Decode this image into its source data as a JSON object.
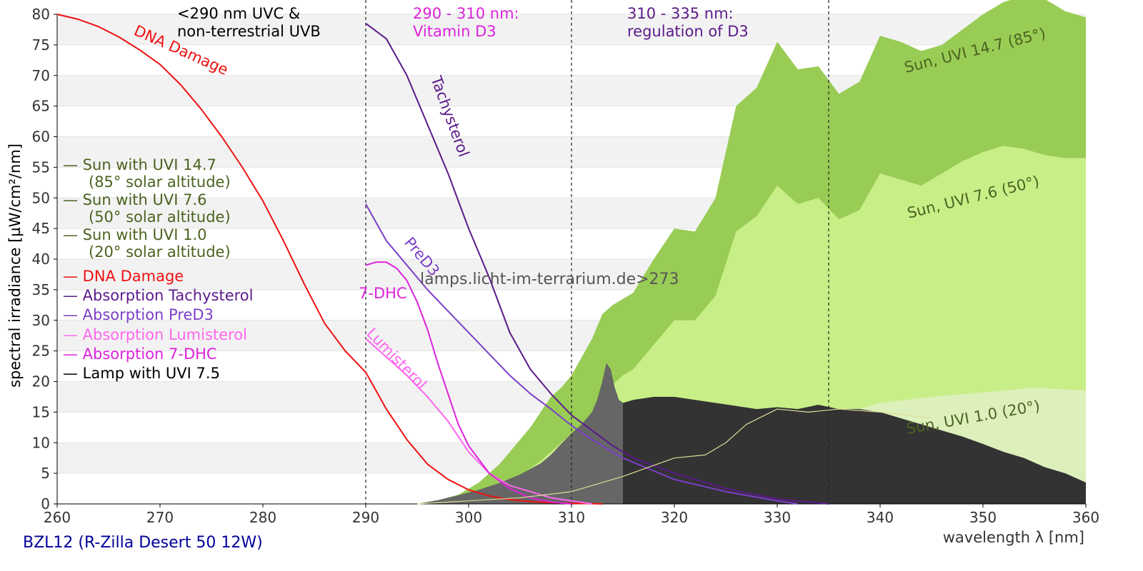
{
  "chart_data": {
    "type": "area",
    "xlabel": "wavelength λ [nm]",
    "ylabel": "spectral irradiance [µW/cm²/nm]",
    "subtitle": "BZL12 (R-Zilla Desert 50 12W)",
    "watermark": "lamps.licht-im-terrarium.de>273",
    "xlim": [
      260,
      360
    ],
    "ylim": [
      0,
      80
    ],
    "xticks": [
      260,
      270,
      280,
      290,
      300,
      310,
      320,
      330,
      340,
      350,
      360
    ],
    "yticks": [
      0,
      5,
      10,
      15,
      20,
      25,
      30,
      35,
      40,
      45,
      50,
      55,
      60,
      65,
      70,
      75,
      80
    ],
    "grid": "alternating horizontal bands",
    "region_dividers": [
      290,
      310,
      335
    ],
    "region_labels": [
      {
        "line1": "<290 nm UVC &",
        "line2": "non-terrestrial UVB",
        "color": "#000000"
      },
      {
        "line1": "290 - 310 nm:",
        "line2": "Vitamin D3",
        "color": "#dd22dd"
      },
      {
        "line1": "310 - 335 nm:",
        "line2": "regulation of D3",
        "color": "#5b1a8b"
      }
    ],
    "legend": {
      "position": "left",
      "items": [
        {
          "line1": "— Sun with UVI 14.7",
          "line2": "(85° solar altitude)",
          "color": "#4b6320"
        },
        {
          "line1": "— Sun with UVI 7.6",
          "line2": "(50° solar altitude)",
          "color": "#4b6320"
        },
        {
          "line1": "— Sun with UVI 1.0",
          "line2": "(20° solar altitude)",
          "color": "#4b6320"
        },
        {
          "line1": "— DNA Damage",
          "color": "#ee1111"
        },
        {
          "line1": "— Absorption Tachysterol",
          "color": "#5b1a8b"
        },
        {
          "line1": "— Absorption PreD3",
          "color": "#7b3fc8"
        },
        {
          "line1": "— Absorption Lumisterol",
          "color": "#ff66ee"
        },
        {
          "line1": "— Absorption 7-DHC",
          "color": "#dd22dd"
        },
        {
          "line1": "— Lamp with UVI 7.5",
          "color": "#000000"
        }
      ]
    },
    "curve_labels": [
      {
        "text": "DNA Damage",
        "color": "#ee1111"
      },
      {
        "text": "Tachysterol",
        "color": "#5b1a8b"
      },
      {
        "text": "PreD3",
        "color": "#7b3fc8"
      },
      {
        "text": "7-DHC",
        "color": "#dd22dd"
      },
      {
        "text": "Lumisterol",
        "color": "#ff66ee"
      }
    ],
    "area_labels": [
      {
        "text": "Sun, UVI 14.7 (85°)",
        "color": "#4b6320"
      },
      {
        "text": "Sun, UVI 7.6 (50°)",
        "color": "#4b6320"
      },
      {
        "text": "Sun, UVI 1.0 (20°)",
        "color": "#4b6320"
      }
    ],
    "areas": [
      {
        "name": "Sun with UVI 14.7",
        "color": "#99cc55",
        "x": [
          295,
          297,
          299,
          300,
          301,
          302,
          303,
          304,
          305,
          306,
          307,
          308,
          309,
          310,
          311,
          312,
          313,
          314,
          315,
          316,
          318,
          320,
          322,
          324,
          326,
          328,
          330,
          332,
          334,
          336,
          338,
          340,
          342,
          344,
          346,
          348,
          350,
          352,
          354,
          356,
          358,
          360
        ],
        "y": [
          0,
          0.6,
          1.5,
          2.5,
          3.5,
          5,
          6.5,
          8.5,
          10.5,
          12.5,
          15,
          17.5,
          19,
          21,
          24,
          27,
          31,
          32.5,
          33.5,
          34.5,
          40,
          45,
          44.5,
          50,
          65,
          68,
          75.5,
          71,
          71.5,
          67,
          69,
          76.5,
          75.5,
          74,
          75,
          77.5,
          80,
          82,
          83,
          82.5,
          80.5,
          79.5
        ]
      },
      {
        "name": "Sun with UVI 7.6",
        "color": "#c8ee88",
        "x": [
          297,
          299,
          300,
          301,
          302,
          303,
          304,
          305,
          306,
          307,
          308,
          309,
          310,
          311,
          312,
          313,
          314,
          315,
          316,
          318,
          320,
          322,
          324,
          326,
          328,
          330,
          332,
          334,
          336,
          338,
          340,
          342,
          344,
          346,
          348,
          350,
          352,
          354,
          356,
          358,
          360
        ],
        "y": [
          0,
          0.4,
          0.8,
          1.3,
          2,
          2.8,
          3.7,
          4.7,
          5.8,
          7,
          8.5,
          10,
          11.5,
          13,
          15,
          17,
          19.5,
          21,
          22,
          26,
          30,
          30,
          34,
          44.5,
          47,
          52,
          49,
          50,
          46.5,
          48,
          54,
          53,
          52,
          54,
          56,
          57.5,
          58.5,
          58,
          57,
          56.5,
          56.5
        ]
      },
      {
        "name": "Sun with UVI 1.0",
        "color": "#ddefbb",
        "x": [
          300,
          305,
          310,
          315,
          320,
          325,
          330,
          335,
          340,
          345,
          350,
          355,
          360
        ],
        "y": [
          0,
          0.5,
          1.8,
          3.5,
          6,
          8.5,
          11.5,
          14,
          16.5,
          17.5,
          18.2,
          19,
          18.5
        ]
      },
      {
        "name": "Lamp with UVI 7.5",
        "color": "#333333",
        "x": [
          295,
          297,
          299,
          301,
          303,
          305,
          307,
          308,
          309,
          310,
          311,
          312,
          312.5,
          313,
          313.4,
          313.8,
          314.2,
          314.6,
          315,
          316,
          318,
          320,
          322,
          324,
          326,
          328,
          330,
          332,
          334,
          336,
          338,
          340,
          342,
          344,
          346,
          348,
          350,
          352,
          354,
          356,
          358,
          360
        ],
        "y": [
          0,
          0.6,
          1.4,
          2.3,
          3.4,
          4.8,
          6.6,
          8,
          9.8,
          11.5,
          13,
          15,
          17,
          20,
          23,
          22,
          19,
          17,
          16.5,
          17,
          17.5,
          17.5,
          17,
          16.5,
          16,
          15.5,
          15.8,
          15.5,
          16.2,
          15.5,
          15.5,
          15,
          14,
          13,
          12,
          11,
          9.8,
          8.5,
          7.5,
          6,
          5,
          3.5
        ]
      }
    ],
    "series": [
      {
        "name": "DNA Damage",
        "color": "#ee1111",
        "x": [
          260,
          262,
          264,
          266,
          268,
          270,
          272,
          274,
          276,
          278,
          280,
          282,
          284,
          286,
          288,
          290,
          292,
          294,
          296,
          298,
          300,
          302,
          304,
          306,
          308,
          310,
          312,
          313
        ],
        "y": [
          80,
          79.2,
          78,
          76.3,
          74.2,
          71.8,
          68.5,
          64.5,
          60,
          55,
          49.5,
          43,
          36,
          29.5,
          25,
          21.5,
          15.5,
          10.5,
          6.5,
          4,
          2.3,
          1.3,
          0.7,
          0.4,
          0.2,
          0.1,
          0.05,
          0
        ]
      },
      {
        "name": "Absorption Tachysterol",
        "color": "#5b1a8b",
        "x": [
          290,
          292,
          294,
          296,
          298,
          300,
          302,
          304,
          306,
          308,
          310,
          312,
          314,
          316,
          320,
          325,
          330,
          335
        ],
        "y": [
          78.5,
          76,
          70,
          62,
          54,
          45,
          37,
          28,
          22,
          18,
          14.5,
          12,
          9.5,
          7.5,
          5,
          2.5,
          0.8,
          0
        ]
      },
      {
        "name": "Absorption PreD3",
        "color": "#7b3fc8",
        "x": [
          290,
          292,
          294,
          296,
          298,
          300,
          302,
          304,
          306,
          308,
          310,
          312,
          315,
          320,
          325,
          330,
          332
        ],
        "y": [
          49,
          43,
          39,
          35,
          31.5,
          28,
          24.5,
          21,
          18,
          15.5,
          12.8,
          10.5,
          7.5,
          4,
          2,
          0.5,
          0
        ]
      },
      {
        "name": "Absorption Lumisterol",
        "color": "#ff66ee",
        "x": [
          290,
          292,
          294,
          296,
          298,
          300,
          302,
          304,
          306,
          308,
          310,
          312
        ],
        "y": [
          27,
          24,
          21,
          17.5,
          13.5,
          8.5,
          5,
          3,
          2,
          1,
          0.5,
          0
        ]
      },
      {
        "name": "Absorption 7-DHC",
        "color": "#dd22dd",
        "x": [
          290,
          291,
          292,
          293,
          294,
          295,
          296,
          297,
          298,
          299,
          300,
          302,
          304,
          306,
          308,
          310
        ],
        "y": [
          39,
          39.5,
          39.5,
          38.5,
          36.5,
          33,
          28.5,
          23,
          18,
          13,
          9.5,
          5,
          2.5,
          1,
          0.3,
          0
        ]
      },
      {
        "name": "Lamp with UVI 7.5",
        "color": "#dddd99",
        "x": [
          295,
          300,
          305,
          310,
          315,
          320,
          323,
          325,
          327,
          330,
          333,
          336,
          340,
          345
        ],
        "y": [
          0,
          0.5,
          1,
          2,
          4.5,
          7.5,
          8,
          10,
          13,
          15.5,
          15,
          15.5,
          15,
          14
        ]
      }
    ]
  }
}
